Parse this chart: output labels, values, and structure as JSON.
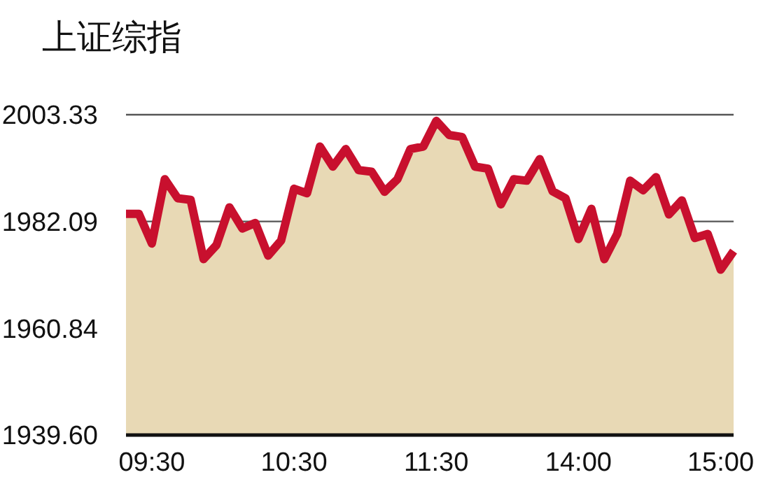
{
  "chart_data": {
    "type": "area",
    "title": "上证综指",
    "categories": [
      null,
      null,
      "09:30",
      null,
      null,
      null,
      null,
      null,
      null,
      null,
      null,
      null,
      null,
      "10:30",
      null,
      null,
      null,
      null,
      null,
      null,
      null,
      null,
      null,
      null,
      "11:30",
      null,
      null,
      null,
      null,
      null,
      null,
      null,
      null,
      null,
      null,
      "14:00",
      null,
      null,
      null,
      null,
      null,
      null,
      null,
      null,
      null,
      null,
      "15:00",
      null
    ],
    "series": [
      {
        "color": "#c8102e",
        "values": [
          1983.6,
          1983.6,
          1977.7,
          1990.5,
          1986.7,
          1986.4,
          1974.6,
          1977.4,
          1984.9,
          1980.7,
          1981.8,
          1975.3,
          1978.3,
          1988.6,
          1987.7,
          1997.0,
          1993.0,
          1996.5,
          1992.3,
          1992.0,
          1988.0,
          1990.5,
          1996.5,
          1997.0,
          2002.1,
          1999.3,
          1998.9,
          1993.0,
          1992.6,
          1985.5,
          1990.5,
          1990.2,
          1994.5,
          1988.1,
          1986.7,
          1978.6,
          1984.6,
          1974.6,
          1979.6,
          1990.2,
          1988.3,
          1990.9,
          1983.5,
          1986.3,
          1978.8,
          1979.6,
          1972.5,
          1976.2
        ]
      }
    ],
    "ylim": [
      1939.6,
      2003.33
    ],
    "yticks": [
      {
        "value": 1939.6,
        "label": "1939.60"
      },
      2003.33,
      1982.09,
      1960.84
    ],
    "grid": "y",
    "line_style": "solid"
  }
}
